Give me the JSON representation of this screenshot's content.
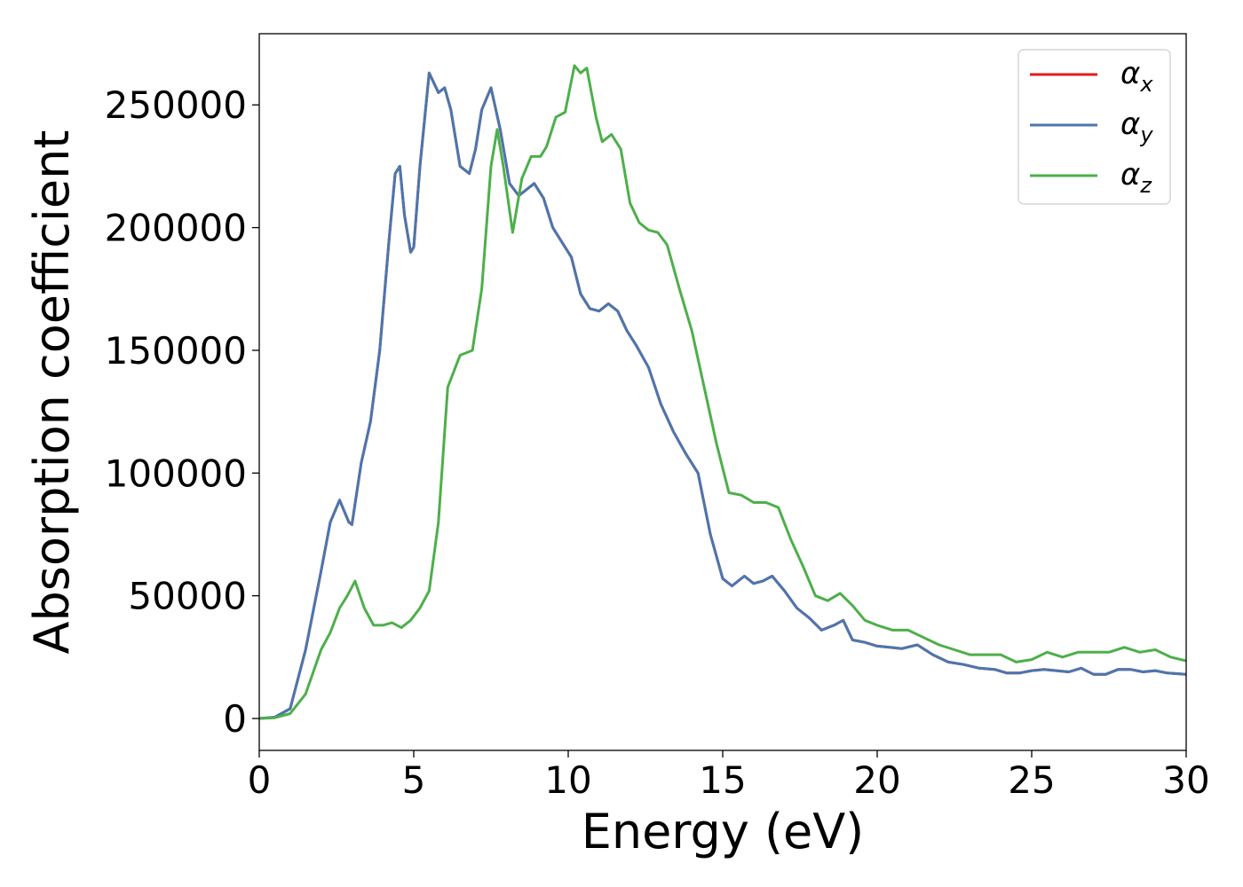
{
  "chart_data": {
    "type": "line",
    "xlabel": "Energy (eV)",
    "ylabel": "Absorption coefficient",
    "xlim": [
      0,
      30
    ],
    "ylim": [
      -13000,
      279000
    ],
    "xticks": [
      0,
      5,
      10,
      15,
      20,
      25,
      30
    ],
    "xtick_labels": [
      "0",
      "5",
      "10",
      "15",
      "20",
      "25",
      "30"
    ],
    "yticks": [
      0,
      50000,
      100000,
      150000,
      200000,
      250000
    ],
    "ytick_labels": [
      "0",
      "50000",
      "100000",
      "150000",
      "200000",
      "250000"
    ],
    "grid": false,
    "legend_position": "top-right",
    "series": [
      {
        "name": "α",
        "sub": "x",
        "color": "#e41a1c",
        "x": [
          0,
          0.5,
          1.0,
          1.5,
          2.0,
          2.3,
          2.6,
          2.9,
          3.0,
          3.3,
          3.6,
          3.9,
          4.2,
          4.4,
          4.55,
          4.7,
          4.9,
          5.0,
          5.2,
          5.5,
          5.8,
          6.0,
          6.2,
          6.5,
          6.8,
          7.0,
          7.2,
          7.5,
          7.8,
          8.1,
          8.4,
          8.7,
          8.9,
          9.2,
          9.5,
          9.8,
          10.1,
          10.4,
          10.7,
          11.0,
          11.3,
          11.6,
          11.9,
          12.2,
          12.6,
          13.0,
          13.4,
          13.8,
          14.2,
          14.6,
          15.0,
          15.3,
          15.7,
          16.0,
          16.3,
          16.6,
          17.0,
          17.4,
          17.8,
          18.2,
          18.6,
          18.9,
          19.2,
          19.6,
          20.0,
          20.4,
          20.8,
          21.3,
          21.8,
          22.3,
          22.8,
          23.3,
          23.8,
          24.2,
          24.6,
          25.0,
          25.4,
          25.8,
          26.2,
          26.6,
          27.0,
          27.4,
          27.8,
          28.2,
          28.6,
          29.0,
          29.4,
          30.0
        ],
        "y": [
          0,
          500,
          4000,
          28000,
          60000,
          80000,
          89000,
          80000,
          79000,
          104000,
          121000,
          150000,
          195000,
          222000,
          225000,
          205000,
          190000,
          192000,
          225000,
          263000,
          255000,
          257000,
          248000,
          225000,
          222000,
          232000,
          248000,
          257000,
          240000,
          218000,
          213000,
          216000,
          218000,
          212000,
          200000,
          194000,
          188000,
          173000,
          167000,
          166000,
          169000,
          166000,
          158000,
          152000,
          143000,
          128000,
          117000,
          108000,
          100000,
          75000,
          57000,
          54000,
          58000,
          55000,
          56000,
          58000,
          52000,
          45000,
          41000,
          36000,
          38000,
          40000,
          32000,
          31000,
          29500,
          29000,
          28500,
          30000,
          26000,
          23000,
          22000,
          20500,
          20000,
          18500,
          18500,
          19500,
          20000,
          19500,
          19000,
          20500,
          18000,
          18000,
          20000,
          20000,
          19000,
          19500,
          18500,
          18000
        ]
      },
      {
        "name": "α",
        "sub": "y",
        "color": "#4a77ae",
        "x": [
          0,
          0.5,
          1.0,
          1.5,
          2.0,
          2.3,
          2.6,
          2.9,
          3.0,
          3.3,
          3.6,
          3.9,
          4.2,
          4.4,
          4.55,
          4.7,
          4.9,
          5.0,
          5.2,
          5.5,
          5.8,
          6.0,
          6.2,
          6.5,
          6.8,
          7.0,
          7.2,
          7.5,
          7.8,
          8.1,
          8.4,
          8.7,
          8.9,
          9.2,
          9.5,
          9.8,
          10.1,
          10.4,
          10.7,
          11.0,
          11.3,
          11.6,
          11.9,
          12.2,
          12.6,
          13.0,
          13.4,
          13.8,
          14.2,
          14.6,
          15.0,
          15.3,
          15.7,
          16.0,
          16.3,
          16.6,
          17.0,
          17.4,
          17.8,
          18.2,
          18.6,
          18.9,
          19.2,
          19.6,
          20.0,
          20.4,
          20.8,
          21.3,
          21.8,
          22.3,
          22.8,
          23.3,
          23.8,
          24.2,
          24.6,
          25.0,
          25.4,
          25.8,
          26.2,
          26.6,
          27.0,
          27.4,
          27.8,
          28.2,
          28.6,
          29.0,
          29.4,
          30.0
        ],
        "y": [
          0,
          500,
          4000,
          28000,
          60000,
          80000,
          89000,
          80000,
          79000,
          104000,
          121000,
          150000,
          195000,
          222000,
          225000,
          205000,
          190000,
          192000,
          225000,
          263000,
          255000,
          257000,
          248000,
          225000,
          222000,
          232000,
          248000,
          257000,
          240000,
          218000,
          213000,
          216000,
          218000,
          212000,
          200000,
          194000,
          188000,
          173000,
          167000,
          166000,
          169000,
          166000,
          158000,
          152000,
          143000,
          128000,
          117000,
          108000,
          100000,
          75000,
          57000,
          54000,
          58000,
          55000,
          56000,
          58000,
          52000,
          45000,
          41000,
          36000,
          38000,
          40000,
          32000,
          31000,
          29500,
          29000,
          28500,
          30000,
          26000,
          23000,
          22000,
          20500,
          20000,
          18500,
          18500,
          19500,
          20000,
          19500,
          19000,
          20500,
          18000,
          18000,
          20000,
          20000,
          19000,
          19500,
          18500,
          18000
        ]
      },
      {
        "name": "α",
        "sub": "z",
        "color": "#4daf4a",
        "x": [
          0,
          0.5,
          1.0,
          1.5,
          2.0,
          2.3,
          2.6,
          2.85,
          3.1,
          3.4,
          3.7,
          4.0,
          4.3,
          4.6,
          4.9,
          5.2,
          5.5,
          5.8,
          6.1,
          6.5,
          6.9,
          7.2,
          7.5,
          7.7,
          7.9,
          8.2,
          8.5,
          8.8,
          9.1,
          9.3,
          9.6,
          9.9,
          10.2,
          10.4,
          10.6,
          10.9,
          11.1,
          11.4,
          11.7,
          12.0,
          12.3,
          12.6,
          12.9,
          13.2,
          13.6,
          14.0,
          14.4,
          14.8,
          15.2,
          15.6,
          16.0,
          16.4,
          16.8,
          17.2,
          17.6,
          18.0,
          18.4,
          18.8,
          19.2,
          19.6,
          20.0,
          20.5,
          21.0,
          21.5,
          22.0,
          22.5,
          23.0,
          23.5,
          24.0,
          24.5,
          25.0,
          25.5,
          26.0,
          26.5,
          27.0,
          27.5,
          28.0,
          28.5,
          29.0,
          29.5,
          30.0
        ],
        "y": [
          0,
          300,
          2000,
          10000,
          28000,
          35000,
          45000,
          50000,
          56000,
          45000,
          38000,
          38000,
          39000,
          37000,
          40000,
          45000,
          52000,
          80000,
          135000,
          148000,
          150000,
          175000,
          225000,
          240000,
          225000,
          198000,
          220000,
          229000,
          229000,
          233000,
          245000,
          247000,
          266000,
          263000,
          265000,
          245000,
          235000,
          238000,
          232000,
          210000,
          202000,
          199000,
          198000,
          193000,
          175000,
          158000,
          135000,
          112000,
          92000,
          91000,
          88000,
          88000,
          86000,
          73000,
          62000,
          50000,
          48000,
          51000,
          46000,
          40000,
          38000,
          36000,
          36000,
          33000,
          30000,
          28000,
          26000,
          26000,
          26000,
          23000,
          24000,
          27000,
          25000,
          27000,
          27000,
          27000,
          29000,
          27000,
          28000,
          25000,
          23500
        ]
      }
    ]
  }
}
